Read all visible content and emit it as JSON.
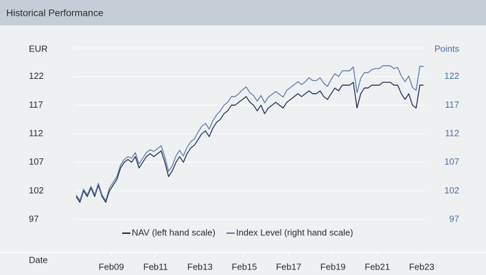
{
  "header": {
    "title": "Historical Performance"
  },
  "chart_data": {
    "type": "line",
    "y_label": "EUR",
    "y2_label": "Points",
    "x_label": "Date",
    "x": [
      "2007-07",
      "2007-09",
      "2007-11",
      "2008-01",
      "2008-03",
      "2008-05",
      "2008-07",
      "2008-09",
      "2008-11",
      "2009-01",
      "2009-03",
      "2009-05",
      "2009-07",
      "2009-09",
      "2009-11",
      "2010-01",
      "2010-03",
      "2010-05",
      "2010-07",
      "2010-09",
      "2010-11",
      "2011-01",
      "2011-03",
      "2011-05",
      "2011-07",
      "2011-09",
      "2011-11",
      "2012-01",
      "2012-03",
      "2012-05",
      "2012-07",
      "2012-09",
      "2012-11",
      "2013-01",
      "2013-03",
      "2013-05",
      "2013-07",
      "2013-09",
      "2013-11",
      "2014-01",
      "2014-03",
      "2014-05",
      "2014-07",
      "2014-09",
      "2014-11",
      "2015-01",
      "2015-03",
      "2015-05",
      "2015-07",
      "2015-09",
      "2015-11",
      "2016-01",
      "2016-03",
      "2016-05",
      "2016-07",
      "2016-09",
      "2016-11",
      "2017-01",
      "2017-03",
      "2017-05",
      "2017-07",
      "2017-09",
      "2017-11",
      "2018-01",
      "2018-03",
      "2018-05",
      "2018-07",
      "2018-09",
      "2018-11",
      "2019-01",
      "2019-03",
      "2019-05",
      "2019-07",
      "2019-09",
      "2019-11",
      "2020-01",
      "2020-03",
      "2020-05",
      "2020-07",
      "2020-09",
      "2020-11",
      "2021-01",
      "2021-03",
      "2021-05",
      "2021-07",
      "2021-09",
      "2021-11",
      "2022-01",
      "2022-03",
      "2022-05",
      "2022-07",
      "2022-09",
      "2022-11",
      "2023-01",
      "2023-03"
    ],
    "series": [
      {
        "name": "NAV (left hand scale)",
        "color": "#1a2a4f",
        "axis": "y",
        "values": [
          101,
          100,
          102,
          101,
          102.5,
          101,
          103,
          101,
          100,
          102,
          103,
          104,
          106,
          107,
          107.5,
          107,
          108,
          106,
          107,
          108,
          108.5,
          108,
          108.5,
          109,
          107,
          104.5,
          105.5,
          107,
          108,
          107,
          108.5,
          109.5,
          110,
          111,
          112,
          112.5,
          111.5,
          113,
          114,
          114.5,
          115.5,
          116,
          117,
          117,
          117.5,
          118,
          118.5,
          117.5,
          117,
          116,
          117,
          115.5,
          116.5,
          117,
          117.5,
          117,
          116.5,
          117.5,
          118,
          118.5,
          119,
          118.5,
          119,
          119.5,
          119,
          119,
          119.5,
          118.5,
          118,
          119,
          120,
          119.5,
          120.5,
          120.5,
          120.5,
          121,
          116.5,
          119,
          120,
          120,
          120.5,
          120.5,
          120.5,
          121,
          121,
          121,
          120.5,
          120.5,
          119,
          118,
          119,
          117,
          116.5,
          120.5,
          120.5
        ]
      },
      {
        "name": "Index Level (right hand scale)",
        "color": "#5a7aa8",
        "axis": "y2",
        "values": [
          101.3,
          100.3,
          102.3,
          101.3,
          102.8,
          101.3,
          103.3,
          101.3,
          100.3,
          102.5,
          103.5,
          104.5,
          106.5,
          107.5,
          108,
          107.7,
          108.7,
          106.7,
          107.7,
          108.7,
          109.2,
          108.9,
          109.4,
          109.9,
          107.9,
          105.4,
          106.4,
          108.1,
          109.1,
          108.1,
          109.6,
          110.6,
          111.1,
          112.3,
          113.3,
          113.8,
          112.8,
          114.3,
          115.3,
          116,
          117,
          117.5,
          118.5,
          118.5,
          119,
          119.7,
          120.2,
          119.2,
          118.7,
          117.7,
          118.7,
          117.4,
          118.4,
          118.9,
          119.4,
          118.9,
          118.4,
          119.6,
          120.1,
          120.6,
          121.1,
          120.6,
          121.1,
          121.8,
          121.3,
          121.3,
          121.8,
          120.8,
          120.3,
          121.5,
          122.5,
          122,
          123,
          123,
          123,
          123.7,
          119.2,
          121.7,
          122.7,
          122.7,
          123.2,
          123.4,
          123.4,
          123.9,
          123.9,
          123.9,
          123.4,
          123.6,
          122.1,
          121.1,
          122.1,
          120.1,
          119.6,
          123.8,
          123.8
        ]
      }
    ],
    "ylim": [
      97,
      127
    ],
    "yticks": [
      97,
      102,
      107,
      112,
      117,
      122
    ],
    "y2lim": [
      97,
      127
    ],
    "y2ticks": [
      97,
      102,
      107,
      112,
      117,
      122
    ],
    "xlim": [
      "2007-07",
      "2023-03"
    ],
    "xticks": [
      {
        "value": "2009-02",
        "label": "Feb09"
      },
      {
        "value": "2011-02",
        "label": "Feb11"
      },
      {
        "value": "2013-02",
        "label": "Feb13"
      },
      {
        "value": "2015-02",
        "label": "Feb15"
      },
      {
        "value": "2017-02",
        "label": "Feb17"
      },
      {
        "value": "2019-02",
        "label": "Feb19"
      },
      {
        "value": "2021-02",
        "label": "Feb21"
      },
      {
        "value": "2023-02",
        "label": "Feb23"
      }
    ],
    "grid": true,
    "legend": "bottom"
  }
}
